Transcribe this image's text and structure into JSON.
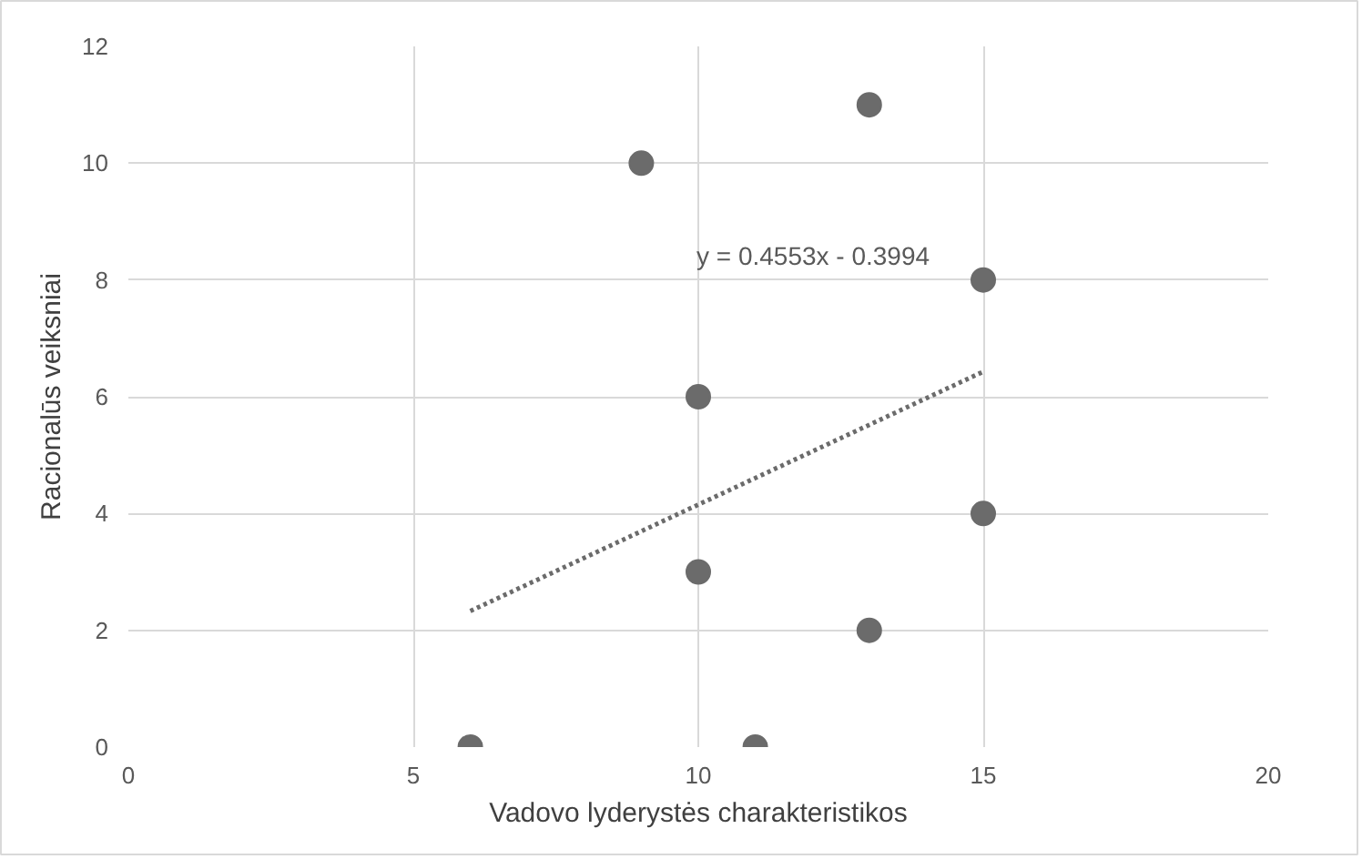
{
  "chart_data": {
    "type": "scatter",
    "xlabel": "Vadovo lyderystės charakteristikos",
    "ylabel": "Racionalūs veiksniai",
    "xlim": [
      0,
      20
    ],
    "ylim": [
      0,
      12
    ],
    "xticks": [
      0,
      5,
      10,
      15,
      20
    ],
    "yticks": [
      0,
      2,
      4,
      6,
      8,
      10,
      12
    ],
    "grid": true,
    "series": [
      {
        "color": "#6b6b6b",
        "marker": "circle",
        "x": [
          6,
          9,
          10,
          10,
          11,
          13,
          13,
          15,
          15
        ],
        "values": [
          0,
          10,
          6,
          3,
          0,
          11,
          2,
          8,
          4
        ]
      },
      {
        "type": "line",
        "color": "#6b6b6b",
        "line_style": "dotted",
        "marker": "none",
        "x": [
          6,
          15
        ],
        "values": [
          2.33,
          6.43
        ]
      }
    ],
    "annotations": [
      "y = 0.4553x - 0.3994"
    ]
  }
}
